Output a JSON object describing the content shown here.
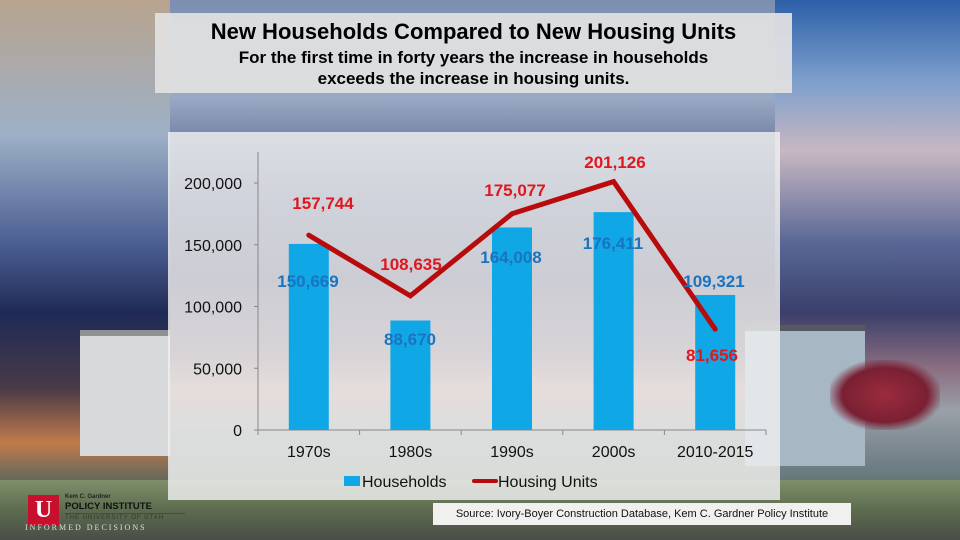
{
  "header": {
    "title": "New Households Compared to New Housing Units",
    "subtitle_line1": "For the first time in forty years the increase in households",
    "subtitle_line2": "exceeds  the increase in housing units."
  },
  "colors": {
    "households_bar": "#10a7e6",
    "households_label": "#1a74c0",
    "housing_line": "#b80c0c",
    "housing_label": "#e0171f"
  },
  "chart_data": {
    "type": "bar",
    "title": "New Households Compared to New Housing Units",
    "xlabel": "",
    "ylabel": "",
    "categories": [
      "1970s",
      "1980s",
      "1990s",
      "2000s",
      "2010-2015"
    ],
    "series": [
      {
        "name": "Households",
        "type": "bar",
        "values": [
          150669,
          88670,
          164008,
          176411,
          109321
        ],
        "labels": [
          "150,669",
          "88,670",
          "164,008",
          "176,411",
          "109,321"
        ]
      },
      {
        "name": "Housing Units",
        "type": "line",
        "values": [
          157744,
          108635,
          175077,
          201126,
          81656
        ],
        "labels": [
          "157,744",
          "108,635",
          "175,077",
          "201,126",
          "81,656"
        ]
      }
    ],
    "y_ticks": [
      "0",
      "50,000",
      "100,000",
      "150,000",
      "200,000"
    ],
    "ylim": [
      0,
      200000
    ],
    "grid": false,
    "legend_position": "bottom"
  },
  "legend": {
    "households": "Households",
    "housing_units": "Housing Units"
  },
  "source": "Source: Ivory-Boyer Construction Database, Kem C. Gardner Policy Institute",
  "logo": {
    "letter": "U",
    "small": "Kem C. Gardner",
    "main": "POLICY INSTITUTE",
    "sub": "THE UNIVERSITY OF UTAH",
    "tagline": "INFORMED DECISIONS"
  }
}
